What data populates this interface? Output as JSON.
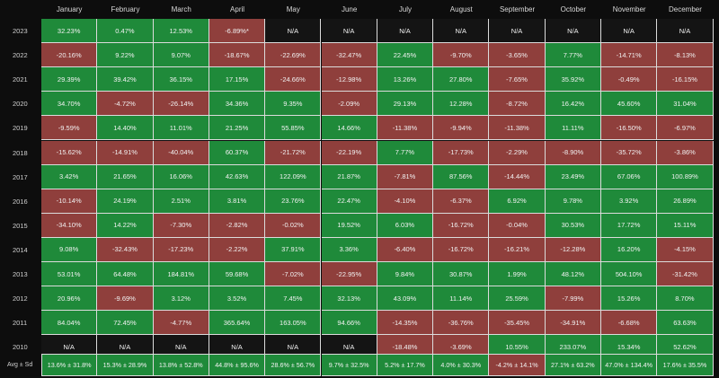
{
  "chart_data": {
    "type": "heatmap",
    "columns": [
      "January",
      "February",
      "March",
      "April",
      "May",
      "June",
      "July",
      "August",
      "September",
      "October",
      "November",
      "December"
    ],
    "rows": [
      {
        "year": "2023",
        "values": [
          "32.23%",
          "0.47%",
          "12.53%",
          "-6.89%*",
          "N/A",
          "N/A",
          "N/A",
          "N/A",
          "N/A",
          "N/A",
          "N/A",
          "N/A"
        ]
      },
      {
        "year": "2022",
        "values": [
          "-20.16%",
          "9.22%",
          "9.07%",
          "-18.67%",
          "-22.69%",
          "-32.47%",
          "22.45%",
          "-9.70%",
          "-3.65%",
          "7.77%",
          "-14.71%",
          "-8.13%"
        ]
      },
      {
        "year": "2021",
        "values": [
          "29.39%",
          "39.42%",
          "36.15%",
          "17.15%",
          "-24.66%",
          "-12.98%",
          "13.26%",
          "27.80%",
          "-7.65%",
          "35.92%",
          "-0.49%",
          "-16.15%"
        ]
      },
      {
        "year": "2020",
        "values": [
          "34.70%",
          "-4.72%",
          "-26.14%",
          "34.36%",
          "9.35%",
          "-2.09%",
          "29.13%",
          "12.28%",
          "-8.72%",
          "16.42%",
          "45.60%",
          "31.04%"
        ]
      },
      {
        "year": "2019",
        "values": [
          "-9.59%",
          "14.40%",
          "11.01%",
          "21.25%",
          "55.85%",
          "14.66%",
          "-11.38%",
          "-9.94%",
          "-11.38%",
          "11.11%",
          "-16.50%",
          "-6.97%"
        ]
      },
      {
        "year": "2018",
        "values": [
          "-15.62%",
          "-14.91%",
          "-40.04%",
          "60.37%",
          "-21.72%",
          "-22.19%",
          "7.77%",
          "-17.73%",
          "-2.29%",
          "-8.90%",
          "-35.72%",
          "-3.86%"
        ]
      },
      {
        "year": "2017",
        "values": [
          "3.42%",
          "21.65%",
          "16.06%",
          "42.63%",
          "122.09%",
          "21.87%",
          "-7.81%",
          "87.56%",
          "-14.44%",
          "23.49%",
          "67.06%",
          "100.89%"
        ]
      },
      {
        "year": "2016",
        "values": [
          "-10.14%",
          "24.19%",
          "2.51%",
          "3.81%",
          "23.76%",
          "22.47%",
          "-4.10%",
          "-6.37%",
          "6.92%",
          "9.78%",
          "3.92%",
          "26.89%"
        ]
      },
      {
        "year": "2015",
        "values": [
          "-34.10%",
          "14.22%",
          "-7.30%",
          "-2.82%",
          "-0.02%",
          "19.52%",
          "6.03%",
          "-16.72%",
          "-0.04%",
          "30.53%",
          "17.72%",
          "15.11%"
        ]
      },
      {
        "year": "2014",
        "values": [
          "9.08%",
          "-32.43%",
          "-17.23%",
          "-2.22%",
          "37.91%",
          "3.36%",
          "-6.40%",
          "-16.72%",
          "-16.21%",
          "-12.28%",
          "16.20%",
          "-4.15%"
        ]
      },
      {
        "year": "2013",
        "values": [
          "53.01%",
          "64.48%",
          "184.81%",
          "59.68%",
          "-7.02%",
          "-22.95%",
          "9.84%",
          "30.87%",
          "1.99%",
          "48.12%",
          "504.10%",
          "-31.42%"
        ]
      },
      {
        "year": "2012",
        "values": [
          "20.96%",
          "-9.69%",
          "3.12%",
          "3.52%",
          "7.45%",
          "32.13%",
          "43.09%",
          "11.14%",
          "25.59%",
          "-7.99%",
          "15.26%",
          "8.70%"
        ]
      },
      {
        "year": "2011",
        "values": [
          "84.04%",
          "72.45%",
          "-4.77%",
          "365.64%",
          "163.05%",
          "94.66%",
          "-14.35%",
          "-36.76%",
          "-35.45%",
          "-34.91%",
          "-6.68%",
          "63.63%"
        ]
      },
      {
        "year": "2010",
        "values": [
          "N/A",
          "N/A",
          "N/A",
          "N/A",
          "N/A",
          "N/A",
          "-18.48%",
          "-3.69%",
          "10.55%",
          "233.07%",
          "15.34%",
          "52.62%"
        ]
      }
    ],
    "summary": {
      "label": "Avg ± Sd",
      "values": [
        "13.6% ± 31.8%",
        "15.3% ± 28.9%",
        "13.8% ± 52.8%",
        "44.8% ± 95.6%",
        "28.6% ± 56.7%",
        "9.7% ± 32.5%",
        "5.2% ± 17.7%",
        "4.0% ± 30.3%",
        "-4.2% ± 14.1%",
        "27.1% ± 63.2%",
        "47.0% ± 134.4%",
        "17.6% ± 35.5%"
      ]
    },
    "colors": {
      "positive": "#1f8a3a",
      "negative": "#8f3f3c",
      "na": "#141414",
      "background": "#0d0d0d"
    }
  }
}
